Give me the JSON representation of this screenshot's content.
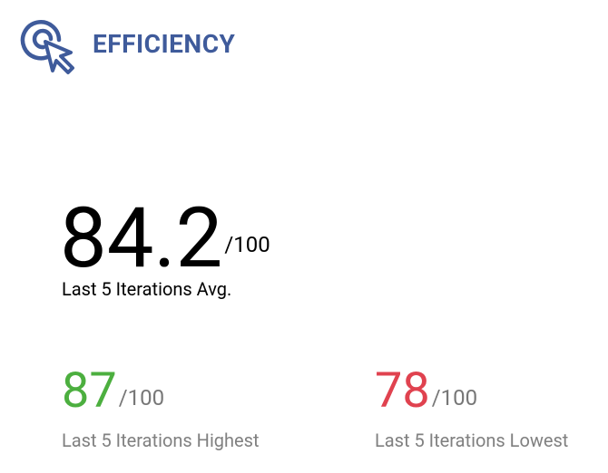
{
  "header": {
    "title": "EFFICIENCY"
  },
  "main": {
    "value": "84.2",
    "suffix": "/100",
    "label": "Last 5 Iterations Avg."
  },
  "stats": [
    {
      "value": "87",
      "suffix": "/100",
      "label": "Last 5 Iterations Highest",
      "color": "#4caf3f"
    },
    {
      "value": "78",
      "suffix": "/100",
      "label": "Last 5 Iterations Lowest",
      "color": "#e0424f"
    }
  ]
}
